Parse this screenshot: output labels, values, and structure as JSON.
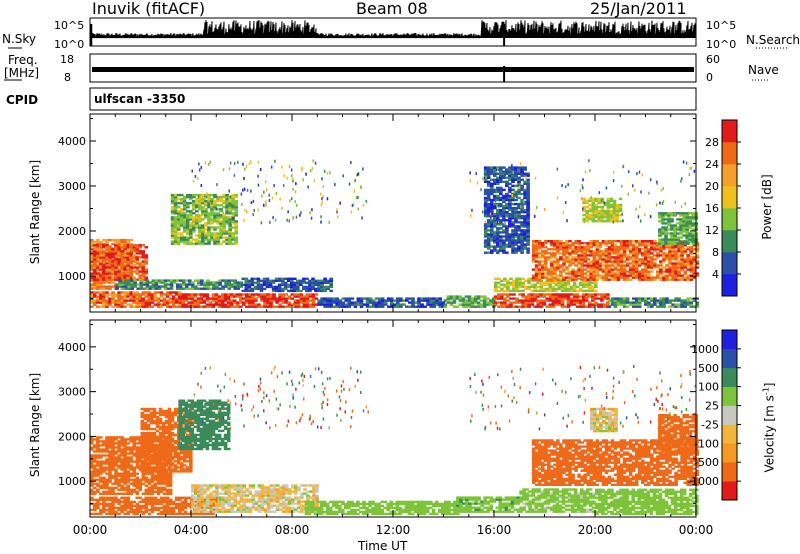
{
  "header": {
    "station": "Inuvik (fitACF)",
    "beam": "Beam 08",
    "date": "25/Jan/2011"
  },
  "top_panels": {
    "nsky_label": "N.Sky",
    "nsky_ticks": [
      "10^5",
      "10^0"
    ],
    "nsearch_label": "N.Search",
    "nsearch_ticks": [
      "10^5",
      "10^0"
    ],
    "freq_label_1": "Freq.",
    "freq_label_2": "[MHz]",
    "freq_ticks": [
      "18",
      "8"
    ],
    "nave_label": "Nave",
    "nave_ticks": [
      "60",
      "0"
    ],
    "cpid_label": "CPID",
    "cpid_value": "ulfscan -3350"
  },
  "colors": {
    "power": [
      "#1f1fe0",
      "#2a4fa8",
      "#3b8a5a",
      "#7dc43b",
      "#f0c020",
      "#f5a02a",
      "#ee6a18",
      "#e21a1a"
    ],
    "velocity": [
      "#e21a1a",
      "#ee6a18",
      "#f59a22",
      "#f2b43a",
      "#c8c8c0",
      "#7dc43b",
      "#3b8a5a",
      "#2a4fa8",
      "#1f1fe0"
    ]
  },
  "chart_data": [
    {
      "type": "heatmap",
      "title": "",
      "xlabel": "Time UT",
      "ylabel": "Slant Range [km]",
      "x_ticks": [
        "00:00",
        "04:00",
        "08:00",
        "12:00",
        "16:00",
        "20:00",
        "00:00"
      ],
      "x_range_hours": [
        0,
        24
      ],
      "y_ticks": [
        1000,
        2000,
        3000,
        4000
      ],
      "ylim": [
        200,
        4600
      ],
      "colorbar_label": "Power [dB]",
      "colorbar_ticks": [
        "4",
        "8",
        "12",
        "16",
        "20",
        "24",
        "28"
      ],
      "colorbar_range": [
        0,
        32
      ],
      "regions": [
        {
          "t": [
            0.0,
            1.6
          ],
          "r": [
            700,
            1800
          ],
          "v": 24
        },
        {
          "t": [
            0.0,
            2.2
          ],
          "r": [
            900,
            1700
          ],
          "v": 27
        },
        {
          "t": [
            0.0,
            3.5
          ],
          "r": [
            300,
            650
          ],
          "v": 26
        },
        {
          "t": [
            3.5,
            9.0
          ],
          "r": [
            300,
            600
          ],
          "v": 29
        },
        {
          "t": [
            1.0,
            6.0
          ],
          "r": [
            700,
            900
          ],
          "v": 10
        },
        {
          "t": [
            3.2,
            5.8
          ],
          "r": [
            1700,
            2800
          ],
          "v": 14
        },
        {
          "t": [
            6.0,
            9.5
          ],
          "r": [
            650,
            950
          ],
          "v": 6
        },
        {
          "t": [
            9.0,
            14.0
          ],
          "r": [
            300,
            500
          ],
          "v": 6
        },
        {
          "t": [
            14.0,
            16.0
          ],
          "r": [
            300,
            550
          ],
          "v": 12
        },
        {
          "t": [
            16.0,
            20.5
          ],
          "r": [
            300,
            600
          ],
          "v": 28
        },
        {
          "t": [
            16.0,
            20.0
          ],
          "r": [
            650,
            950
          ],
          "v": 16
        },
        {
          "t": [
            17.5,
            24.0
          ],
          "r": [
            900,
            1800
          ],
          "v": 26
        },
        {
          "t": [
            20.5,
            24.0
          ],
          "r": [
            300,
            500
          ],
          "v": 10
        },
        {
          "t": [
            15.6,
            17.3
          ],
          "r": [
            1500,
            3400
          ],
          "v": 6
        },
        {
          "t": [
            19.5,
            21.0
          ],
          "r": [
            2200,
            2700
          ],
          "v": 16
        },
        {
          "t": [
            22.5,
            24.0
          ],
          "r": [
            1700,
            2400
          ],
          "v": 12
        }
      ]
    },
    {
      "type": "heatmap",
      "title": "",
      "xlabel": "Time UT",
      "ylabel": "Slant Range [km]",
      "x_ticks": [
        "00:00",
        "04:00",
        "08:00",
        "12:00",
        "16:00",
        "20:00",
        "00:00"
      ],
      "x_range_hours": [
        0,
        24
      ],
      "y_ticks": [
        1000,
        2000,
        3000,
        4000
      ],
      "ylim": [
        200,
        4600
      ],
      "colorbar_label": "Velocity [m s^-1]",
      "colorbar_ticks": [
        "1000",
        "500",
        "100",
        "25",
        "-25",
        "-100",
        "-500",
        "-1000"
      ],
      "colorbar_range": [
        -1000,
        1000
      ],
      "regions": [
        {
          "t": [
            0.0,
            3.2
          ],
          "r": [
            700,
            2000
          ],
          "v": -300
        },
        {
          "t": [
            0.0,
            5.0
          ],
          "r": [
            250,
            650
          ],
          "v": -200
        },
        {
          "t": [
            2.0,
            4.0
          ],
          "r": [
            1200,
            2600
          ],
          "v": -250
        },
        {
          "t": [
            3.5,
            5.5
          ],
          "r": [
            1700,
            2800
          ],
          "v": 200
        },
        {
          "t": [
            4.0,
            9.0
          ],
          "r": [
            300,
            900
          ],
          "v": 0
        },
        {
          "t": [
            8.5,
            14.5
          ],
          "r": [
            250,
            550
          ],
          "v": 60
        },
        {
          "t": [
            14.5,
            17.0
          ],
          "r": [
            300,
            650
          ],
          "v": 80
        },
        {
          "t": [
            17.0,
            20.0
          ],
          "r": [
            300,
            800
          ],
          "v": 50
        },
        {
          "t": [
            17.5,
            24.0
          ],
          "r": [
            900,
            1900
          ],
          "v": -300
        },
        {
          "t": [
            20.0,
            24.0
          ],
          "r": [
            250,
            800
          ],
          "v": 60
        },
        {
          "t": [
            19.8,
            20.8
          ],
          "r": [
            2100,
            2600
          ],
          "v": 0
        },
        {
          "t": [
            22.5,
            24.0
          ],
          "r": [
            1600,
            2500
          ],
          "v": -250
        }
      ]
    }
  ]
}
